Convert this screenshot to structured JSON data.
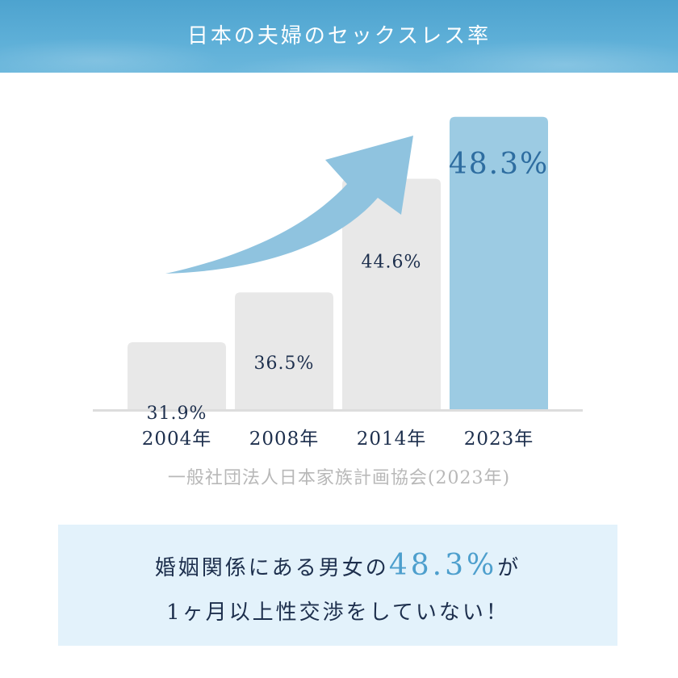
{
  "header": {
    "title": "日本の夫婦のセックスレス率"
  },
  "chart_data": {
    "type": "bar",
    "categories": [
      "2004年",
      "2008年",
      "2014年",
      "2023年"
    ],
    "values": [
      31.9,
      36.5,
      44.6,
      48.3
    ],
    "value_labels": [
      "31.9%",
      "36.5%",
      "44.6%",
      "48.3%"
    ],
    "ylim": [
      0,
      50
    ],
    "grid": false,
    "annotation": "upward trend arrow",
    "colors": {
      "bar": "#e8e8e8",
      "highlight_bar": "#9ccbe3",
      "highlight_label": "#2e6da0",
      "label": "#1d2f4d",
      "arrow": "#8fc3df",
      "baseline": "#dddddd"
    }
  },
  "source": "一般社団法人日本家族計画協会(2023年)",
  "message": {
    "line1_pre": "婚姻関係にある男女の",
    "line1_value": "48.3%",
    "line1_post": "が",
    "line2": "1ヶ月以上性交渉をしていない！"
  }
}
